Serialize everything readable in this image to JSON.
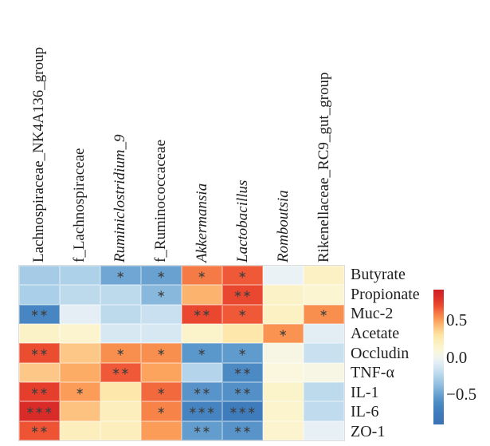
{
  "figure": {
    "background": "#ffffff",
    "label_color": "#1f1f1f",
    "star_color": "#3f3f3f"
  },
  "chart_data": {
    "type": "heatmap",
    "title": "",
    "columns": [
      "Lachnospiraceae_NK4A136_group",
      "f_Lachnospiraceae",
      "Ruminiclostridium_9",
      "f_Ruminococcaceae",
      "Akkermansia",
      "Lactobacillus",
      "Romboutsia",
      "Rikenellaceae_RC9_gut_group"
    ],
    "columns_italic": [
      false,
      false,
      true,
      false,
      true,
      true,
      true,
      false
    ],
    "rows": [
      "Butyrate",
      "Propionate",
      "Muc-2",
      "Acetate",
      "Occludin",
      "TNF-α",
      "IL-1",
      "IL-6",
      "ZO-1"
    ],
    "values": [
      [
        -0.3,
        -0.27,
        -0.48,
        -0.5,
        0.58,
        0.65,
        -0.04,
        0.17
      ],
      [
        -0.28,
        -0.22,
        -0.22,
        -0.4,
        0.44,
        0.7,
        0.16,
        0.12
      ],
      [
        -0.65,
        -0.07,
        -0.22,
        -0.18,
        0.7,
        0.65,
        0.18,
        0.53
      ],
      [
        0.16,
        0.13,
        -0.12,
        -0.12,
        0.15,
        0.27,
        0.52,
        -0.08
      ],
      [
        0.68,
        0.38,
        0.53,
        0.53,
        -0.55,
        -0.53,
        0.03,
        -0.18
      ],
      [
        0.38,
        0.46,
        0.65,
        0.48,
        -0.25,
        -0.62,
        0.06,
        0.03
      ],
      [
        0.73,
        0.5,
        0.27,
        0.62,
        -0.56,
        -0.58,
        0.15,
        -0.22
      ],
      [
        0.82,
        0.4,
        0.2,
        0.56,
        -0.66,
        -0.74,
        0.14,
        -0.21
      ],
      [
        0.66,
        0.2,
        0.2,
        0.5,
        -0.52,
        -0.56,
        0.13,
        -0.06
      ]
    ],
    "significance": [
      [
        "",
        "",
        "*",
        "*",
        "*",
        "*",
        "",
        ""
      ],
      [
        "",
        "",
        "",
        "*",
        "",
        "**",
        "",
        ""
      ],
      [
        "**",
        "",
        "",
        "",
        "**",
        "*",
        "",
        "*"
      ],
      [
        "",
        "",
        "",
        "",
        "",
        "",
        "*",
        ""
      ],
      [
        "**",
        "",
        "*",
        "*",
        "*",
        "*",
        "",
        ""
      ],
      [
        "",
        "",
        "**",
        "",
        "",
        "**",
        "",
        ""
      ],
      [
        "**",
        "*",
        "",
        "*",
        "**",
        "**",
        "",
        ""
      ],
      [
        "***",
        "",
        "",
        "*",
        "***",
        "***",
        "",
        ""
      ],
      [
        "**",
        "",
        "",
        "",
        "**",
        "**",
        "",
        ""
      ]
    ],
    "significance_symbol": "∗",
    "colorbar": {
      "tick_labels": [
        "0.5",
        "0.0",
        "−0.5"
      ],
      "tick_values": [
        0.5,
        0.0,
        -0.5
      ],
      "vmin": -0.9,
      "vmax": 0.9,
      "position": "right"
    },
    "colormap_stops": [
      [
        -0.9,
        "#3a72b4"
      ],
      [
        -0.74,
        "#3f7cbc"
      ],
      [
        -0.66,
        "#4584c1"
      ],
      [
        -0.58,
        "#5290c7"
      ],
      [
        -0.52,
        "#639dce"
      ],
      [
        -0.45,
        "#78add7"
      ],
      [
        -0.38,
        "#90bce0"
      ],
      [
        -0.28,
        "#aacfe8"
      ],
      [
        -0.2,
        "#c3ddef"
      ],
      [
        -0.1,
        "#ddebf4"
      ],
      [
        -0.03,
        "#edf3f5"
      ],
      [
        0.04,
        "#f9f7e2"
      ],
      [
        0.12,
        "#fbf5d2"
      ],
      [
        0.2,
        "#fcefbd"
      ],
      [
        0.3,
        "#fde3a2"
      ],
      [
        0.4,
        "#fdc180"
      ],
      [
        0.47,
        "#fca861"
      ],
      [
        0.53,
        "#f98f4e"
      ],
      [
        0.6,
        "#f47343"
      ],
      [
        0.66,
        "#ee5434"
      ],
      [
        0.72,
        "#e6402c"
      ],
      [
        0.82,
        "#d92b28"
      ],
      [
        0.9,
        "#ce2026"
      ]
    ],
    "grid_on": false,
    "legend_position": "none"
  }
}
